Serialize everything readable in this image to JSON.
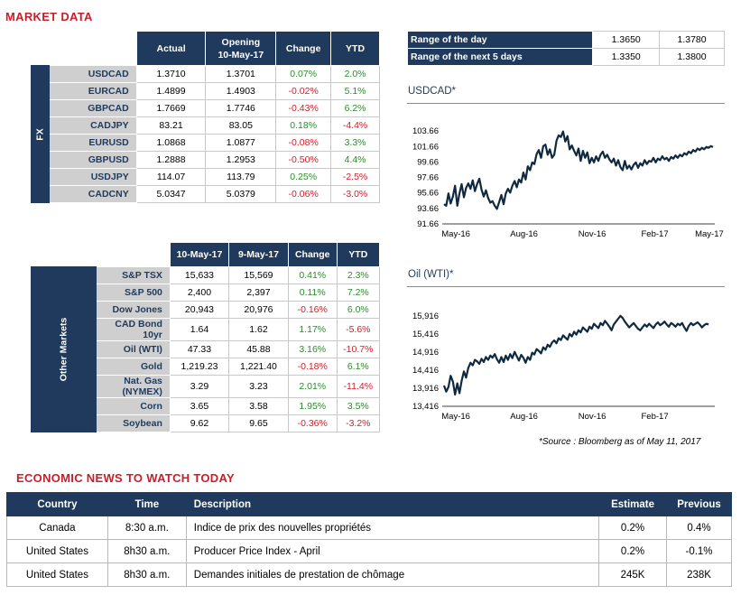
{
  "market_title": "MARKET DATA",
  "fx": {
    "side_label": "FX",
    "headers": [
      "Actual",
      "Opening\n10-May-17",
      "Change",
      "YTD"
    ],
    "header_actual": "Actual",
    "header_opening_l1": "Opening",
    "header_opening_l2": "10-May-17",
    "header_change": "Change",
    "header_ytd": "YTD",
    "rows": [
      {
        "name": "USDCAD",
        "actual": "1.3710",
        "opening": "1.3701",
        "change": "0.07%",
        "ytd": "2.0%"
      },
      {
        "name": "EURCAD",
        "actual": "1.4899",
        "opening": "1.4903",
        "change": "-0.02%",
        "ytd": "5.1%"
      },
      {
        "name": "GBPCAD",
        "actual": "1.7669",
        "opening": "1.7746",
        "change": "-0.43%",
        "ytd": "6.2%"
      },
      {
        "name": "CADJPY",
        "actual": "83.21",
        "opening": "83.05",
        "change": "0.18%",
        "ytd": "-4.4%"
      },
      {
        "name": "EURUSD",
        "actual": "1.0868",
        "opening": "1.0877",
        "change": "-0.08%",
        "ytd": "3.3%"
      },
      {
        "name": "GBPUSD",
        "actual": "1.2888",
        "opening": "1.2953",
        "change": "-0.50%",
        "ytd": "4.4%"
      },
      {
        "name": "USDJPY",
        "actual": "114.07",
        "opening": "113.79",
        "change": "0.25%",
        "ytd": "-2.5%"
      },
      {
        "name": "CADCNY",
        "actual": "5.0347",
        "opening": "5.0379",
        "change": "-0.06%",
        "ytd": "-3.0%"
      }
    ]
  },
  "other": {
    "side_label": "Other Markets",
    "header_d1": "10-May-17",
    "header_d2": "9-May-17",
    "header_change": "Change",
    "header_ytd": "YTD",
    "rows": [
      {
        "name": "S&P TSX",
        "d1": "15,633",
        "d2": "15,569",
        "change": "0.41%",
        "ytd": "2.3%"
      },
      {
        "name": "S&P 500",
        "d1": "2,400",
        "d2": "2,397",
        "change": "0.11%",
        "ytd": "7.2%"
      },
      {
        "name": "Dow Jones",
        "d1": "20,943",
        "d2": "20,976",
        "change": "-0.16%",
        "ytd": "6.0%"
      },
      {
        "name": "CAD Bond 10yr",
        "d1": "1.64",
        "d2": "1.62",
        "change": "1.17%",
        "ytd": "-5.6%"
      },
      {
        "name": "Oil (WTI)",
        "d1": "47.33",
        "d2": "45.88",
        "change": "3.16%",
        "ytd": "-10.7%"
      },
      {
        "name": "Gold",
        "d1": "1,219.23",
        "d2": "1,221.40",
        "change": "-0.18%",
        "ytd": "6.1%"
      },
      {
        "name": "Nat. Gas (NYMEX)",
        "d1": "3.29",
        "d2": "3.23",
        "change": "2.01%",
        "ytd": "-11.4%"
      },
      {
        "name": "Corn",
        "d1": "3.65",
        "d2": "3.58",
        "change": "1.95%",
        "ytd": "3.5%"
      },
      {
        "name": "Soybean",
        "d1": "9.62",
        "d2": "9.65",
        "change": "-0.36%",
        "ytd": "-3.2%"
      }
    ]
  },
  "range": {
    "rows": [
      {
        "label": "Range of the day",
        "low": "1.3650",
        "high": "1.3780"
      },
      {
        "label": "Range of the next 5 days",
        "low": "1.3350",
        "high": "1.3800"
      }
    ]
  },
  "colors": {
    "navy": "#1f3a5c",
    "positive": "#2e8b2e",
    "negative": "#d0202a",
    "title_red": "#c8202a",
    "line": "#0f2a40"
  },
  "chart_data": [
    {
      "type": "line",
      "title": "USDCAD*",
      "y_ticks": [
        "103.66",
        "101.66",
        "99.66",
        "97.66",
        "95.66",
        "93.66",
        "91.66"
      ],
      "x_ticks": [
        "May-16",
        "Aug-16",
        "Nov-16",
        "Feb-17",
        "May-17"
      ],
      "ylim": [
        91.66,
        104.66
      ],
      "series": [
        {
          "x": [
            0,
            3,
            6,
            9,
            12,
            15,
            18,
            21,
            24,
            27,
            30,
            33,
            36,
            39,
            42,
            45,
            48,
            51,
            54,
            57,
            60,
            63,
            66,
            69,
            72,
            75,
            78,
            81,
            84,
            87,
            90,
            93,
            96,
            99,
            102,
            105,
            108,
            111,
            114,
            117,
            120,
            123,
            126,
            129,
            132,
            135,
            138,
            141,
            144,
            147,
            150,
            153,
            156,
            159,
            162,
            165,
            168,
            171,
            174,
            177,
            180,
            183,
            186,
            189,
            192,
            195,
            198,
            201,
            204,
            207,
            210,
            213,
            216,
            219,
            222,
            225,
            228,
            231,
            234,
            237,
            240,
            243,
            246,
            249,
            252,
            255,
            258,
            261,
            264,
            267,
            270,
            273,
            276,
            279,
            282,
            285,
            288,
            291,
            294,
            297,
            300,
            303,
            306,
            309,
            312,
            315,
            318,
            321,
            324,
            327,
            330,
            333,
            336,
            339,
            342,
            345,
            348,
            351,
            354,
            357,
            360,
            363,
            366
          ],
          "y": [
            94.2,
            94.0,
            95.6,
            94.3,
            95.2,
            96.6,
            94.0,
            95.6,
            96.8,
            95.1,
            96.3,
            96.9,
            96.2,
            97.3,
            95.9,
            96.8,
            97.5,
            96.1,
            95.2,
            96.0,
            95.0,
            94.4,
            94.6,
            94.0,
            93.6,
            94.5,
            95.4,
            94.2,
            95.6,
            96.2,
            95.7,
            96.6,
            97.2,
            96.4,
            97.4,
            97.0,
            98.3,
            97.4,
            99.1,
            98.6,
            99.6,
            99.4,
            100.7,
            101.2,
            100.2,
            101.7,
            101.9,
            100.6,
            101.3,
            100.2,
            100.6,
            102.4,
            103.1,
            102.9,
            103.6,
            102.3,
            103.0,
            101.3,
            101.8,
            101.1,
            100.5,
            101.4,
            99.8,
            101.1,
            100.2,
            100.9,
            99.5,
            100.2,
            99.6,
            100.4,
            99.8,
            100.6,
            101.0,
            100.2,
            100.6,
            100.0,
            99.6,
            100.1,
            99.2,
            99.9,
            99.0,
            98.6,
            99.8,
            98.8,
            99.2,
            98.7,
            99.3,
            99.6,
            98.9,
            99.5,
            99.2,
            99.9,
            99.4,
            99.8,
            99.7,
            100.2,
            99.6,
            100.1,
            99.9,
            100.4,
            100.0,
            100.2,
            99.8,
            100.3,
            100.1,
            100.5,
            100.2,
            100.6,
            100.4,
            100.8,
            100.6,
            101.0,
            100.8,
            101.2,
            101.0,
            101.4,
            101.2,
            101.5,
            101.3,
            101.6,
            101.5,
            101.7,
            101.6
          ]
        }
      ]
    },
    {
      "type": "line",
      "title": "Oil (WTI)*",
      "y_ticks": [
        "15,916",
        "15,416",
        "14,916",
        "14,416",
        "13,916",
        "13,416"
      ],
      "x_ticks": [
        "May-16",
        "Aug-16",
        "Nov-16",
        "Feb-17"
      ],
      "ylim": [
        13416,
        16166
      ],
      "series": [
        {
          "x": [
            0,
            3,
            6,
            9,
            12,
            15,
            18,
            21,
            24,
            27,
            30,
            33,
            36,
            39,
            42,
            45,
            48,
            51,
            54,
            57,
            60,
            63,
            66,
            69,
            72,
            75,
            78,
            81,
            84,
            87,
            90,
            93,
            96,
            99,
            102,
            105,
            108,
            111,
            114,
            117,
            120,
            123,
            126,
            129,
            132,
            135,
            138,
            141,
            144,
            147,
            150,
            153,
            156,
            159,
            162,
            165,
            168,
            171,
            174,
            177,
            180,
            183,
            186,
            189,
            192,
            195,
            198,
            201,
            204,
            207,
            210,
            213,
            216,
            219,
            222,
            225,
            228,
            231,
            234,
            237,
            240,
            243,
            246,
            249,
            252,
            255,
            258,
            261,
            264,
            267,
            270,
            273,
            276,
            279,
            282,
            285,
            288,
            291,
            294,
            297,
            300,
            303,
            306,
            309,
            312,
            315,
            318,
            321,
            324,
            327,
            330,
            333,
            336,
            339,
            342,
            345,
            348,
            351,
            354,
            357,
            360
          ],
          "y": [
            13990,
            13820,
            13950,
            14260,
            14100,
            13740,
            14050,
            13780,
            14120,
            14380,
            14210,
            14480,
            14620,
            14550,
            14700,
            14660,
            14590,
            14730,
            14640,
            14780,
            14700,
            14820,
            14760,
            14860,
            14720,
            14620,
            14780,
            14640,
            14820,
            14700,
            14860,
            14750,
            14920,
            14800,
            14680,
            14840,
            14760,
            14620,
            14780,
            14700,
            14900,
            14850,
            15000,
            14950,
            14880,
            15050,
            14980,
            15120,
            15060,
            15180,
            15240,
            15160,
            15300,
            15250,
            15380,
            15320,
            15260,
            15420,
            15350,
            15480,
            15400,
            15520,
            15460,
            15600,
            15540,
            15480,
            15620,
            15560,
            15700,
            15640,
            15580,
            15720,
            15660,
            15780,
            15700,
            15620,
            15520,
            15680,
            15760,
            15840,
            15920,
            15860,
            15760,
            15680,
            15600,
            15660,
            15720,
            15640,
            15560,
            15520,
            15600,
            15680,
            15620,
            15700,
            15640,
            15580,
            15680,
            15740,
            15660,
            15700,
            15760,
            15680,
            15620,
            15720,
            15680,
            15620,
            15700,
            15660,
            15720,
            15600,
            15500,
            15640,
            15720,
            15660,
            15700,
            15740,
            15680,
            15600,
            15660,
            15700,
            15680
          ]
        }
      ]
    }
  ],
  "source_note": "*Source : Bloomberg as of  May 11, 2017",
  "news": {
    "title": "ECONOMIC NEWS TO WATCH TODAY",
    "headers": {
      "country": "Country",
      "time": "Time",
      "description": "Description",
      "estimate": "Estimate",
      "previous": "Previous"
    },
    "rows": [
      {
        "country": "Canada",
        "time": "8:30 a.m.",
        "description": "Indice de prix des nouvelles propriétés",
        "estimate": "0.2%",
        "previous": "0.4%"
      },
      {
        "country": "United States",
        "time": "8h30 a.m.",
        "description": "Producer Price Index - April",
        "estimate": "0.2%",
        "previous": "-0.1%"
      },
      {
        "country": "United States",
        "time": "8h30 a.m.",
        "description": "Demandes initiales de prestation de chômage",
        "estimate": "245K",
        "previous": "238K"
      }
    ]
  }
}
